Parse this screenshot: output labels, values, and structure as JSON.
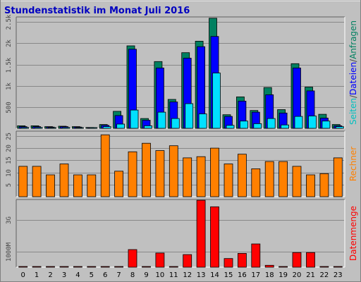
{
  "chart_data": {
    "type": "bar",
    "title": "Stundenstatistik im Monat Juli 2016",
    "x": [
      "0",
      "1",
      "2",
      "3",
      "4",
      "5",
      "6",
      "7",
      "8",
      "9",
      "10",
      "11",
      "12",
      "13",
      "14",
      "15",
      "16",
      "17",
      "18",
      "19",
      "20",
      "21",
      "22",
      "23"
    ],
    "colors": {
      "background": "#c0c0c0",
      "frame": "#ffffff",
      "title": "#0000c0",
      "hits": "#008060",
      "files": "#0000ff",
      "pages": "#00e0ff",
      "visits": "#ff8000",
      "volume": "#ff0000"
    },
    "panels": [
      {
        "name": "requests",
        "side_label_parts": [
          {
            "text": "Seiten",
            "color": "#00c0c0"
          },
          {
            "text": "/",
            "color": "#404040"
          },
          {
            "text": "Dateien",
            "color": "#0000ff"
          },
          {
            "text": "/",
            "color": "#404040"
          },
          {
            "text": "Anfragen",
            "color": "#008060"
          }
        ],
        "yticks": [
          {
            "label": "500",
            "value": 500
          },
          {
            "label": "1k",
            "value": 1000
          },
          {
            "label": "1.5k",
            "value": 1500
          },
          {
            "label": "2k",
            "value": 2000
          },
          {
            "label": "2.5k",
            "value": 2500
          }
        ],
        "ylim": [
          0,
          2620
        ],
        "series": [
          {
            "name": "Anfragen",
            "color": "#008060",
            "values": [
              60,
              60,
              40,
              50,
              40,
              20,
              90,
              400,
              1940,
              230,
              1570,
              680,
              1780,
              2050,
              2590,
              320,
              740,
              420,
              960,
              440,
              1520,
              970,
              330,
              90
            ]
          },
          {
            "name": "Dateien",
            "color": "#0000ff",
            "values": [
              40,
              40,
              30,
              40,
              30,
              15,
              70,
              300,
              1860,
              190,
              1420,
              620,
              1650,
              1920,
              2160,
              280,
              640,
              380,
              790,
              360,
              1420,
              880,
              240,
              60
            ]
          },
          {
            "name": "Seiten",
            "color": "#00e0ff",
            "values": [
              20,
              20,
              15,
              20,
              15,
              5,
              40,
              100,
              430,
              60,
              380,
              230,
              580,
              340,
              1300,
              70,
              170,
              110,
              230,
              80,
              280,
              290,
              170,
              40
            ]
          }
        ]
      },
      {
        "name": "visits",
        "side_label_parts": [
          {
            "text": "Rechner",
            "color": "#ff8000"
          }
        ],
        "yticks": [
          {
            "label": "5",
            "value": 5
          },
          {
            "label": "10",
            "value": 10
          },
          {
            "label": "15",
            "value": 15
          },
          {
            "label": "20",
            "value": 20
          },
          {
            "label": "25",
            "value": 25
          }
        ],
        "ylim": [
          0,
          27
        ],
        "series": [
          {
            "name": "Rechner",
            "color": "#ff8000",
            "values": [
              12.5,
              12.5,
              9,
              13.5,
              9,
              9,
              25.5,
              10.5,
              18.5,
              22,
              19,
              21,
              16,
              16.5,
              20,
              13.5,
              17.5,
              11.5,
              14.5,
              14.5,
              12.5,
              9,
              9.5,
              16
            ]
          }
        ]
      },
      {
        "name": "volume",
        "side_label_parts": [
          {
            "text": "Datenmenge",
            "color": "#ff0000"
          }
        ],
        "yticks": [
          {
            "label": "1000M",
            "value": 1000
          },
          {
            "label": "3G",
            "value": 3000
          }
        ],
        "ylim": [
          0,
          4300
        ],
        "series": [
          {
            "name": "Datenmenge",
            "color": "#ff0000",
            "values": [
              20,
              20,
              20,
              20,
              20,
              20,
              20,
              20,
              1120,
              20,
              900,
              20,
              800,
              4250,
              3840,
              550,
              880,
              1480,
              120,
              20,
              930,
              930,
              20,
              20
            ]
          }
        ]
      }
    ]
  }
}
